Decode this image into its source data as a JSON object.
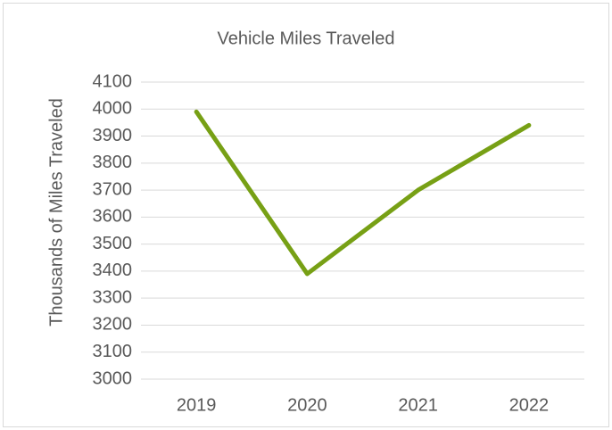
{
  "chart_data": {
    "type": "line",
    "title": "Vehicle Miles Traveled",
    "y_label": "Thousands of Miles Traveled",
    "categories": [
      "2019",
      "2020",
      "2021",
      "2022"
    ],
    "values": [
      3990,
      3390,
      3700,
      3940
    ],
    "color": "#77a015",
    "ylim": [
      3000,
      4100
    ],
    "yticks": [
      3000,
      3100,
      3200,
      3300,
      3400,
      3500,
      3600,
      3700,
      3800,
      3900,
      4000,
      4100
    ],
    "grid": true
  }
}
